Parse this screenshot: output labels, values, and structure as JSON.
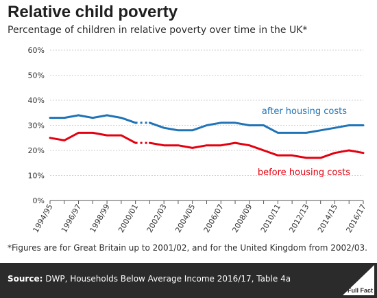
{
  "title": "Relative child poverty",
  "subtitle": "Percentage of children in relative poverty over time in the UK*",
  "footnote": "*Figures are for Great Britain up to 2001/02, and for the United Kingdom from 2002/03.",
  "source": {
    "label": "Source:",
    "text": " DWP, Households Below Average Income 2016/17, Table 4a"
  },
  "logo": {
    "text": "Full Fact"
  },
  "colors": {
    "after": "#1f73b7",
    "before": "#e3000f",
    "grid": "#cfcfcf",
    "axis": "#555555",
    "text": "#333333"
  },
  "chart_data": {
    "type": "line",
    "categories": [
      "1994/95",
      "1995/96",
      "1996/97",
      "1997/98",
      "1998/99",
      "1999/00",
      "2000/01",
      "2001/02",
      "2002/03",
      "2003/04",
      "2004/05",
      "2005/06",
      "2006/07",
      "2007/08",
      "2008/09",
      "2009/10",
      "2010/11",
      "2011/12",
      "2012/13",
      "2013/14",
      "2014/15",
      "2015/16",
      "2016/17"
    ],
    "tick_labels": [
      "1994/95",
      "1996/97",
      "1998/99",
      "2000/01",
      "2002/03",
      "2004/05",
      "2006/07",
      "2008/09",
      "2010/11",
      "2012/13",
      "2014/15",
      "2016/17"
    ],
    "y_ticks": [
      "0%",
      "10%",
      "20%",
      "30%",
      "40%",
      "50%",
      "60%"
    ],
    "ylim": [
      0,
      60
    ],
    "grid": true,
    "dotted_segment": [
      "2000/01",
      "2001/02"
    ],
    "series": [
      {
        "name": "after housing costs",
        "color": "after",
        "values": [
          33,
          33,
          34,
          33,
          34,
          33,
          31,
          31,
          29,
          28,
          28,
          30,
          31,
          31,
          30,
          30,
          27,
          27,
          27,
          28,
          29,
          30,
          30
        ]
      },
      {
        "name": "before housing costs",
        "color": "before",
        "values": [
          25,
          24,
          27,
          27,
          26,
          26,
          23,
          23,
          22,
          22,
          21,
          22,
          22,
          23,
          22,
          20,
          18,
          18,
          17,
          17,
          19,
          20,
          19
        ]
      }
    ]
  }
}
